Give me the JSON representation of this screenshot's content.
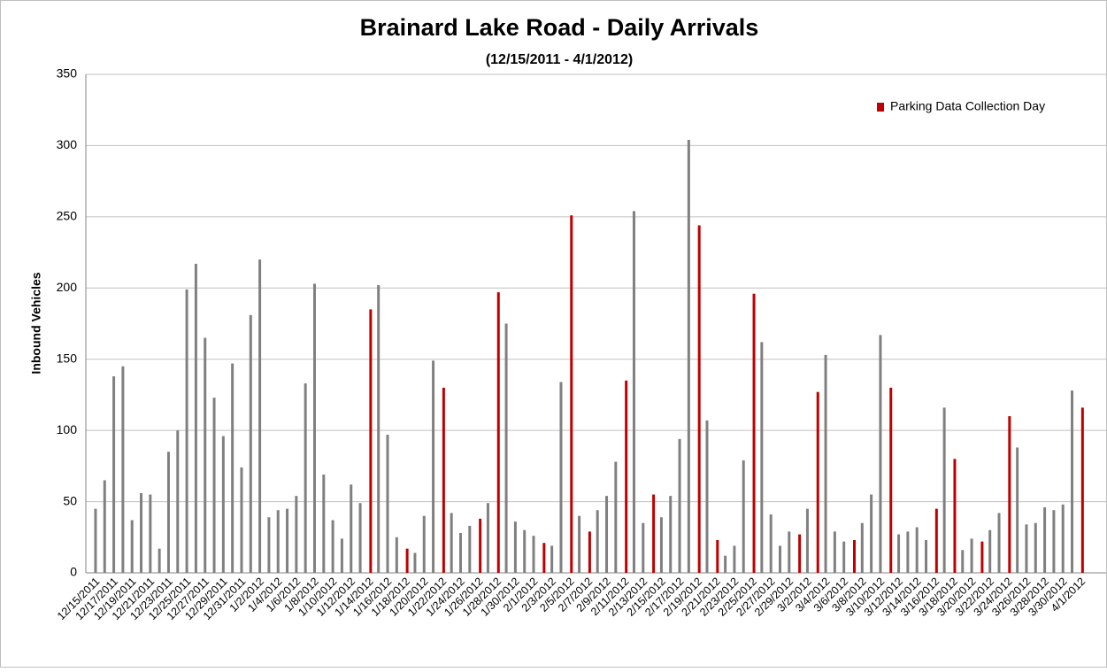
{
  "chart_data": {
    "type": "bar",
    "title": "Brainard Lake Road - Daily Arrivals",
    "subtitle": "(12/15/2011 - 4/1/2012)",
    "y_label": "Inbound Vehicles",
    "categories": [
      "12/15/2011",
      null,
      "12/17/2011",
      null,
      "12/19/2011",
      null,
      "12/21/2011",
      null,
      "12/23/2011",
      null,
      "12/25/2011",
      null,
      "12/27/2011",
      null,
      "12/29/2011",
      null,
      "12/31/2011",
      null,
      "1/2/2012",
      null,
      "1/4/2012",
      null,
      "1/6/2012",
      null,
      "1/8/2012",
      null,
      "1/10/2012",
      null,
      "1/12/2012",
      null,
      "1/14/2012",
      null,
      "1/16/2012",
      null,
      "1/18/2012",
      null,
      "1/20/2012",
      null,
      "1/22/2012",
      null,
      "1/24/2012",
      null,
      "1/26/2012",
      null,
      "1/28/2012",
      null,
      "1/30/2012",
      null,
      "2/1/2012",
      null,
      "2/3/2012",
      null,
      "2/5/2012",
      null,
      "2/7/2012",
      null,
      "2/9/2012",
      null,
      "2/11/2012",
      null,
      "2/13/2012",
      null,
      "2/15/2012",
      null,
      "2/17/2012",
      null,
      "2/19/2012",
      null,
      "2/21/2012",
      null,
      "2/23/2012",
      null,
      "2/25/2012",
      null,
      "2/27/2012",
      null,
      "2/29/2012",
      null,
      "3/2/2012",
      null,
      "3/4/2012",
      null,
      "3/6/2012",
      null,
      "3/8/2012",
      null,
      "3/10/2012",
      null,
      "3/12/2012",
      null,
      "3/14/2012",
      null,
      "3/16/2012",
      null,
      "3/18/2012",
      null,
      "3/20/2012",
      null,
      "3/22/2012",
      null,
      "3/24/2012",
      null,
      "3/26/2012",
      null,
      "3/28/2012",
      null,
      "3/30/2012",
      null,
      "4/1/2012"
    ],
    "series": [
      {
        "color": "#808080",
        "values": [
          45,
          65,
          138,
          145,
          37,
          56,
          55,
          17,
          85,
          100,
          199,
          217,
          165,
          123,
          96,
          147,
          74,
          181,
          220,
          39,
          44,
          45,
          54,
          133,
          203,
          69,
          37,
          24,
          62,
          49,
          null,
          202,
          97,
          25,
          null,
          14,
          40,
          149,
          null,
          42,
          28,
          33,
          null,
          49,
          null,
          175,
          36,
          30,
          26,
          null,
          19,
          134,
          null,
          40,
          null,
          44,
          54,
          78,
          null,
          254,
          35,
          null,
          39,
          54,
          94,
          304,
          null,
          107,
          null,
          12,
          19,
          79,
          null,
          162,
          41,
          19,
          29,
          null,
          45,
          null,
          153,
          29,
          22,
          null,
          35,
          55,
          167,
          null,
          27,
          29,
          32,
          23,
          null,
          116,
          null,
          16,
          24,
          null,
          30,
          42,
          null,
          88,
          34,
          35,
          46,
          44,
          48,
          128,
          null
        ]
      },
      {
        "name": "Parking Data Collection Day",
        "color": "#c00000",
        "values": [
          null,
          null,
          null,
          null,
          null,
          null,
          null,
          null,
          null,
          null,
          null,
          null,
          null,
          null,
          null,
          null,
          null,
          null,
          null,
          null,
          null,
          null,
          null,
          null,
          null,
          null,
          null,
          null,
          null,
          null,
          185,
          null,
          null,
          null,
          17,
          null,
          null,
          null,
          130,
          null,
          null,
          null,
          38,
          null,
          197,
          null,
          null,
          null,
          null,
          21,
          null,
          null,
          251,
          null,
          29,
          null,
          null,
          null,
          135,
          null,
          null,
          55,
          null,
          null,
          null,
          null,
          244,
          null,
          23,
          null,
          null,
          null,
          196,
          null,
          null,
          null,
          null,
          27,
          null,
          127,
          null,
          null,
          null,
          23,
          null,
          null,
          null,
          130,
          null,
          null,
          null,
          null,
          45,
          null,
          80,
          null,
          null,
          22,
          null,
          null,
          110,
          null,
          null,
          null,
          null,
          null,
          null,
          null,
          116
        ]
      }
    ],
    "ylim": [
      0,
      350
    ],
    "yticks": [
      0,
      50,
      100,
      150,
      200,
      250,
      300,
      350
    ],
    "grid": true,
    "legend": "top-right"
  }
}
